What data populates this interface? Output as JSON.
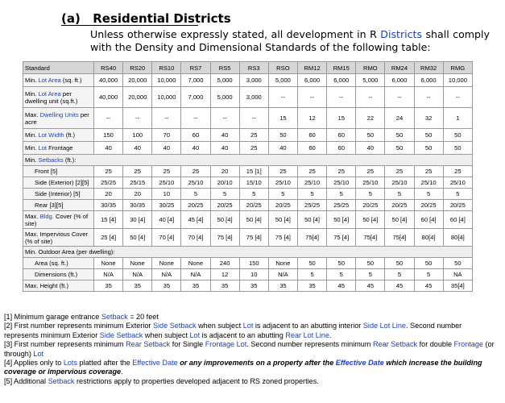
{
  "section": {
    "label": "(a)",
    "title": "Residential Districts"
  },
  "intro": {
    "before": "Unless otherwise expressly stated, all development in R ",
    "link": "Districts",
    "after": " shall comply with the Density and Dimensional Standards of the following table:"
  },
  "table": {
    "header": [
      "Standard",
      "RS40",
      "RS20",
      "RS10",
      "RS7",
      "RS5",
      "RS3",
      "RSO",
      "RM12",
      "RM15",
      "RMO",
      "RM24",
      "RM32",
      "RMG"
    ],
    "rows": [
      {
        "label_pre": "Min. ",
        "label_link": "Lot",
        "label_mid": " ",
        "label_link2": "Area",
        "label_post": " (sq. ft.)",
        "values": [
          "40,000",
          "20,000",
          "10,000",
          "7,000",
          "5,000",
          "3,000",
          "5,000",
          "6,000",
          "6,000",
          "5,000",
          "6,000",
          "6,000",
          "10,000"
        ]
      },
      {
        "label_pre": "Min. ",
        "label_link": "Lot",
        "label_mid": " ",
        "label_link2": "Area",
        "label_post": " per dwelling unit (sq.ft.)",
        "values": [
          "40,000",
          "20,000",
          "10,000",
          "7,000",
          "5,000",
          "3,000",
          "--",
          "--",
          "--",
          "--",
          "--",
          "--",
          "--"
        ]
      },
      {
        "label_pre": "Max. ",
        "label_link": "Dwelling Units",
        "label_mid": "",
        "label_link2": "",
        "label_post": " per acre",
        "values": [
          "--",
          "--",
          "--",
          "--",
          "--",
          "--",
          "15",
          "12",
          "15",
          "22",
          "24",
          "32",
          "1"
        ]
      },
      {
        "label_pre": "Min. ",
        "label_link": "Lot",
        "label_mid": " ",
        "label_link2": "Width",
        "label_post": " (ft.)",
        "values": [
          "150",
          "100",
          "70",
          "60",
          "40",
          "25",
          "50",
          "60",
          "60",
          "50",
          "50",
          "50",
          "50"
        ]
      },
      {
        "label_pre": "Min. ",
        "label_link": "Lot",
        "label_mid": "",
        "label_link2": "",
        "label_post": " Frontage",
        "values": [
          "40",
          "40",
          "40",
          "40",
          "40",
          "25",
          "40",
          "60",
          "60",
          "40",
          "50",
          "50",
          "50"
        ]
      }
    ],
    "setbacks_group": {
      "label_pre": "Min. ",
      "label_link": "Setbacks",
      "label_post": " (ft.):"
    },
    "setback_rows": [
      {
        "label": "Front [5]",
        "values": [
          "25",
          "25",
          "25",
          "25",
          "20",
          "15 [1]",
          "25",
          "25",
          "25",
          "25",
          "25",
          "25",
          "25"
        ]
      },
      {
        "label": "Side (Exterior) [2][5]",
        "values": [
          "25/25",
          "25/15",
          "25/10",
          "25/10",
          "20/10",
          "15/10",
          "25/10",
          "25/10",
          "25/10",
          "25/10",
          "25/10",
          "25/10",
          "25/10"
        ]
      },
      {
        "label": "Side (Interior) [5]",
        "values": [
          "20",
          "20",
          "10",
          "5",
          "5",
          "5",
          "5",
          "5",
          "5",
          "5",
          "5",
          "5",
          "5"
        ]
      },
      {
        "label": "Rear [3][5]",
        "values": [
          "30/35",
          "30/35",
          "30/25",
          "20/25",
          "20/25",
          "20/25",
          "20/25",
          "25/25",
          "25/25",
          "20/25",
          "20/25",
          "20/25",
          "20/25"
        ]
      }
    ],
    "cover_rows": [
      {
        "label_pre": "Max. ",
        "label_link": "Bldg.",
        "label_post": " Cover (% of site)",
        "values": [
          "15 [4]",
          "30 [4]",
          "40 [4]",
          "45 [4]",
          "50 [4]",
          "50 [4]",
          "50 [4]",
          "50 [4]",
          "50 [4]",
          "50 [4]",
          "50 [4]",
          "60 [4]",
          "60 [4]"
        ]
      },
      {
        "label_pre": "Max. Impervious Cover (% of site)",
        "label_link": "",
        "label_post": "",
        "values": [
          "25 [4]",
          "50 [4]",
          "70 [4]",
          "70 [4]",
          "75 [4]",
          "75 [4]",
          "75 [4]",
          "75[4]",
          "75 [4]",
          "75[4]",
          "75[4]",
          "80[4]",
          "80[4]"
        ]
      }
    ],
    "outdoor_group": {
      "label": "Min. Outdoor Area (per dwelling):"
    },
    "outdoor_rows": [
      {
        "label": "Area (sq. ft.)",
        "values": [
          "None",
          "None",
          "None",
          "None",
          "240",
          "150",
          "None",
          "50",
          "50",
          "50",
          "50",
          "50",
          "50"
        ]
      },
      {
        "label": "Dimensions (ft.)",
        "values": [
          "N/A",
          "N/A",
          "N/A",
          "N/A",
          "12",
          "10",
          "N/A",
          "5",
          "5",
          "5",
          "5",
          "5",
          "NA"
        ]
      }
    ],
    "height_row": {
      "label": "Max. Height (ft.)",
      "values": [
        "35",
        "35",
        "35",
        "35",
        "35",
        "35",
        "35",
        "35",
        "45",
        "45",
        "45",
        "45",
        "35[4]"
      ]
    }
  },
  "notes": {
    "n1": {
      "pre": "[1] Minimum garage entrance ",
      "link": "Setback",
      "post": " = 20 feet"
    },
    "n2": {
      "p1": "[2] First number represents minimum Exterior ",
      "l1": "Side Setback",
      "p2": " when subject ",
      "l2": "Lot",
      "p3": " is adjacent to an abutting interior ",
      "l3": "Side Lot Line",
      "p4": ". Second number represents minimum Exterior ",
      "l4": "Side Setback",
      "p5": " when subject ",
      "l5": "Lot",
      "p6": " is adjacent to an abutting ",
      "l6": "Rear Lot Line",
      "p7": "."
    },
    "n3": {
      "p1": "[3] First number represents minimum ",
      "l1": "Rear Setback",
      "p2": " for Single ",
      "l2": "Frontage Lot",
      "p3": ".  Second number represents minimum ",
      "l3": "Rear Setback",
      "p4": " for double ",
      "l4": "Frontage",
      "p5": " (or through) ",
      "l5": "Lot"
    },
    "n4": {
      "p1": "[4] Applies only to ",
      "l1": "Lots",
      "p2": " platted after the ",
      "l2": "Effective Date",
      "b1": " or any improvements on a property after the ",
      "l3": "Effective Date",
      "b2": " which increase the building coverage or impervious coverage",
      "p3": "."
    },
    "n5": {
      "pre": "[5] Additional ",
      "link": "Setback",
      "post": " restrictions apply to properties developed adjacent to RS zoned properties."
    }
  }
}
